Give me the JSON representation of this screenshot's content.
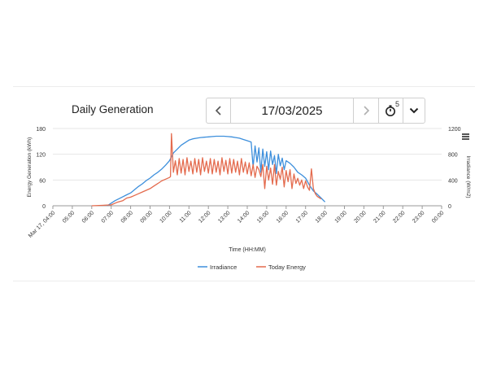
{
  "header": {
    "title": "Daily Generation",
    "date_value": "17/03/2025",
    "period_superscript": "5"
  },
  "icons": {
    "prev": "chevron-left-icon",
    "next": "chevron-right-icon",
    "period": "stopwatch-icon",
    "dropdown": "chevron-down-icon",
    "chart_menu": "hamburger-menu-icon"
  },
  "colors": {
    "irradiance": "#3d8fdc",
    "energy": "#e46b4e"
  },
  "chart_data": {
    "type": "line",
    "xlabel": "Time (HH:MM)",
    "ylabel_left": "Energy Generation (kWh)",
    "ylabel_right": "Irradiance (W/m2)",
    "x_ticks": [
      "Mar 17, 04:00",
      "05:00",
      "06:00",
      "07:00",
      "08:00",
      "09:00",
      "10:00",
      "11:00",
      "12:00",
      "13:00",
      "14:00",
      "15:00",
      "16:00",
      "17:00",
      "18:00",
      "19:00",
      "20:00",
      "21:00",
      "22:00",
      "23:00",
      "00:00"
    ],
    "x_range_hours": [
      4,
      24
    ],
    "ylim_left": [
      0,
      180
    ],
    "yticks_left": [
      0,
      60,
      120,
      180
    ],
    "ylim_right": [
      0,
      1200
    ],
    "yticks_right": [
      0,
      400,
      800,
      1200
    ],
    "legend_position": "bottom-center",
    "series": [
      {
        "name": "Irradiance",
        "axis": "right",
        "hours": [
          6.8,
          7.0,
          7.2,
          7.4,
          7.6,
          7.8,
          8.0,
          8.2,
          8.4,
          8.6,
          8.8,
          9.0,
          9.2,
          9.4,
          9.6,
          9.8,
          10.0,
          10.2,
          10.4,
          10.6,
          10.8,
          11.0,
          11.2,
          11.4,
          11.6,
          11.8,
          12.0,
          12.2,
          12.4,
          12.6,
          12.8,
          13.0,
          13.2,
          13.4,
          13.6,
          13.8,
          14.0,
          14.2,
          14.3,
          14.4,
          14.5,
          14.6,
          14.7,
          14.8,
          14.9,
          15.0,
          15.1,
          15.2,
          15.3,
          15.4,
          15.5,
          15.6,
          15.7,
          15.8,
          15.9,
          16.0,
          16.2,
          16.4,
          16.6,
          16.8,
          17.0,
          17.2,
          17.4,
          17.6,
          17.8,
          18.0
        ],
        "values": [
          0,
          40,
          80,
          110,
          140,
          170,
          200,
          250,
          300,
          340,
          390,
          430,
          480,
          520,
          570,
          630,
          700,
          820,
          880,
          940,
          980,
          1020,
          1040,
          1050,
          1060,
          1065,
          1070,
          1075,
          1080,
          1080,
          1080,
          1075,
          1070,
          1060,
          1050,
          1030,
          1010,
          990,
          600,
          930,
          680,
          900,
          520,
          880,
          610,
          840,
          560,
          850,
          640,
          780,
          500,
          800,
          620,
          740,
          560,
          700,
          660,
          600,
          520,
          480,
          430,
          320,
          230,
          180,
          120,
          60
        ]
      },
      {
        "name": "Today Energy",
        "axis": "left",
        "hours": [
          6.0,
          6.5,
          7.0,
          7.3,
          7.6,
          7.8,
          8.0,
          8.2,
          8.4,
          8.6,
          8.8,
          9.0,
          9.2,
          9.4,
          9.6,
          9.8,
          10.0,
          10.05,
          10.1,
          10.2,
          10.3,
          10.4,
          10.5,
          10.6,
          10.7,
          10.8,
          10.9,
          11.0,
          11.1,
          11.2,
          11.3,
          11.4,
          11.5,
          11.6,
          11.7,
          11.8,
          11.9,
          12.0,
          12.1,
          12.2,
          12.3,
          12.4,
          12.5,
          12.6,
          12.7,
          12.8,
          12.9,
          13.0,
          13.1,
          13.2,
          13.3,
          13.4,
          13.5,
          13.6,
          13.7,
          13.8,
          13.9,
          14.0,
          14.1,
          14.2,
          14.3,
          14.4,
          14.5,
          14.6,
          14.7,
          14.8,
          14.9,
          15.0,
          15.1,
          15.2,
          15.3,
          15.4,
          15.5,
          15.6,
          15.7,
          15.8,
          15.9,
          16.0,
          16.1,
          16.2,
          16.3,
          16.4,
          16.5,
          16.6,
          16.7,
          16.8,
          16.9,
          17.0,
          17.1,
          17.2,
          17.3,
          17.4,
          17.5,
          17.6,
          17.8
        ],
        "values": [
          0,
          1,
          2,
          8,
          12,
          18,
          20,
          24,
          28,
          32,
          36,
          40,
          46,
          52,
          58,
          62,
          66,
          68,
          168,
          78,
          105,
          72,
          110,
          76,
          108,
          72,
          112,
          80,
          104,
          74,
          110,
          78,
          108,
          72,
          112,
          80,
          104,
          76,
          110,
          74,
          108,
          78,
          104,
          72,
          112,
          80,
          106,
          74,
          110,
          76,
          108,
          78,
          104,
          72,
          110,
          78,
          102,
          74,
          100,
          70,
          96,
          66,
          92,
          84,
          68,
          96,
          40,
          92,
          60,
          88,
          50,
          96,
          48,
          80,
          62,
          90,
          44,
          82,
          56,
          84,
          40,
          74,
          52,
          64,
          48,
          60,
          40,
          58,
          44,
          36,
          86,
          40,
          28,
          22,
          16
        ]
      }
    ]
  }
}
